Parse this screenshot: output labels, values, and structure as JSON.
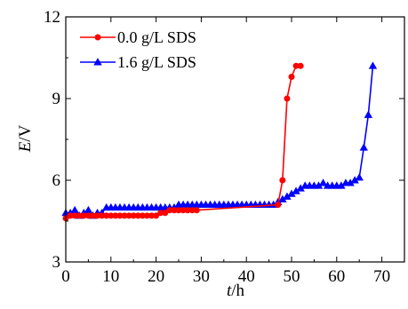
{
  "chart_data": {
    "type": "line",
    "title": "",
    "xlabel": {
      "var": "t",
      "unit": "/h"
    },
    "ylabel": {
      "var": "E",
      "unit": "/V"
    },
    "xlim": [
      0,
      75
    ],
    "ylim": [
      3,
      12
    ],
    "xticks": [
      0,
      10,
      20,
      30,
      40,
      50,
      60,
      70
    ],
    "yticks": [
      3,
      6,
      9,
      12
    ],
    "xtick_labels": [
      "0",
      "10",
      "20",
      "30",
      "40",
      "50",
      "60",
      "70"
    ],
    "ytick_labels": [
      "3",
      "6",
      "9",
      "12"
    ],
    "grid": false,
    "legend_position": "top-left",
    "series": [
      {
        "name": "0.0 g/L SDS",
        "color": "#ff0000",
        "marker": "circle",
        "points": [
          [
            0,
            4.6
          ],
          [
            1,
            4.7
          ],
          [
            2,
            4.7
          ],
          [
            3,
            4.7
          ],
          [
            4,
            4.7
          ],
          [
            5,
            4.7
          ],
          [
            6,
            4.7
          ],
          [
            7,
            4.7
          ],
          [
            8,
            4.7
          ],
          [
            9,
            4.7
          ],
          [
            10,
            4.7
          ],
          [
            11,
            4.7
          ],
          [
            12,
            4.7
          ],
          [
            13,
            4.7
          ],
          [
            14,
            4.7
          ],
          [
            15,
            4.7
          ],
          [
            16,
            4.7
          ],
          [
            17,
            4.7
          ],
          [
            18,
            4.7
          ],
          [
            19,
            4.7
          ],
          [
            20,
            4.7
          ],
          [
            21,
            4.8
          ],
          [
            22,
            4.8
          ],
          [
            23,
            4.9
          ],
          [
            24,
            4.9
          ],
          [
            25,
            4.9
          ],
          [
            26,
            4.9
          ],
          [
            27,
            4.9
          ],
          [
            28,
            4.9
          ],
          [
            29,
            4.9
          ],
          [
            47,
            5.1
          ],
          [
            48,
            6.0
          ],
          [
            49,
            9.0
          ],
          [
            50,
            9.8
          ],
          [
            51,
            10.2
          ],
          [
            52,
            10.2
          ]
        ]
      },
      {
        "name": "1.6 g/L SDS",
        "color": "#0000ff",
        "marker": "triangle",
        "points": [
          [
            0,
            4.8
          ],
          [
            1,
            4.8
          ],
          [
            2,
            4.9
          ],
          [
            3,
            4.7
          ],
          [
            4,
            4.8
          ],
          [
            5,
            4.9
          ],
          [
            6,
            4.7
          ],
          [
            7,
            4.8
          ],
          [
            8,
            4.8
          ],
          [
            9,
            5.0
          ],
          [
            10,
            5.0
          ],
          [
            11,
            5.0
          ],
          [
            12,
            5.0
          ],
          [
            13,
            5.0
          ],
          [
            14,
            5.0
          ],
          [
            15,
            5.0
          ],
          [
            16,
            5.0
          ],
          [
            17,
            5.0
          ],
          [
            18,
            5.0
          ],
          [
            19,
            5.0
          ],
          [
            20,
            5.0
          ],
          [
            21,
            5.0
          ],
          [
            22,
            5.0
          ],
          [
            23,
            5.0
          ],
          [
            24,
            5.0
          ],
          [
            25,
            5.1
          ],
          [
            26,
            5.1
          ],
          [
            27,
            5.1
          ],
          [
            28,
            5.1
          ],
          [
            29,
            5.1
          ],
          [
            30,
            5.1
          ],
          [
            31,
            5.1
          ],
          [
            32,
            5.1
          ],
          [
            33,
            5.1
          ],
          [
            34,
            5.1
          ],
          [
            35,
            5.1
          ],
          [
            36,
            5.1
          ],
          [
            37,
            5.1
          ],
          [
            38,
            5.1
          ],
          [
            39,
            5.1
          ],
          [
            40,
            5.1
          ],
          [
            41,
            5.1
          ],
          [
            42,
            5.1
          ],
          [
            43,
            5.1
          ],
          [
            44,
            5.1
          ],
          [
            45,
            5.1
          ],
          [
            46,
            5.1
          ],
          [
            47,
            5.2
          ],
          [
            48,
            5.3
          ],
          [
            49,
            5.4
          ],
          [
            50,
            5.5
          ],
          [
            51,
            5.6
          ],
          [
            52,
            5.7
          ],
          [
            53,
            5.8
          ],
          [
            54,
            5.8
          ],
          [
            55,
            5.8
          ],
          [
            56,
            5.8
          ],
          [
            57,
            5.9
          ],
          [
            58,
            5.8
          ],
          [
            59,
            5.8
          ],
          [
            60,
            5.8
          ],
          [
            61,
            5.8
          ],
          [
            62,
            5.9
          ],
          [
            63,
            5.9
          ],
          [
            64,
            6.0
          ],
          [
            65,
            6.1
          ],
          [
            66,
            7.2
          ],
          [
            67,
            8.4
          ],
          [
            68,
            10.2
          ]
        ]
      }
    ]
  }
}
